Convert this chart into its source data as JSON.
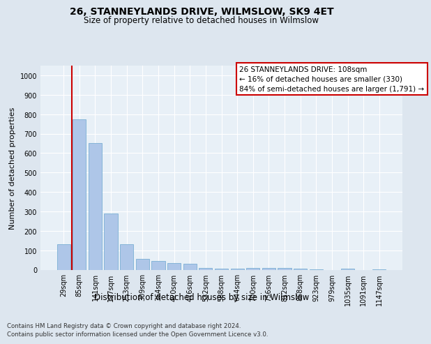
{
  "title1": "26, STANNEYLANDS DRIVE, WILMSLOW, SK9 4ET",
  "title2": "Size of property relative to detached houses in Wilmslow",
  "xlabel": "Distribution of detached houses by size in Wilmslow",
  "ylabel": "Number of detached properties",
  "categories": [
    "29sqm",
    "85sqm",
    "141sqm",
    "197sqm",
    "253sqm",
    "309sqm",
    "364sqm",
    "420sqm",
    "476sqm",
    "532sqm",
    "588sqm",
    "644sqm",
    "700sqm",
    "756sqm",
    "812sqm",
    "868sqm",
    "923sqm",
    "979sqm",
    "1035sqm",
    "1091sqm",
    "1147sqm"
  ],
  "values": [
    130,
    775,
    650,
    290,
    130,
    55,
    45,
    35,
    30,
    10,
    5,
    5,
    10,
    8,
    8,
    5,
    2,
    0,
    5,
    0,
    2
  ],
  "bar_color": "#aec6e8",
  "bar_edge_color": "#7aafd4",
  "vline_color": "#cc0000",
  "vline_x": 0.5,
  "annotation_text": "26 STANNEYLANDS DRIVE: 108sqm\n← 16% of detached houses are smaller (330)\n84% of semi-detached houses are larger (1,791) →",
  "annotation_box_facecolor": "#ffffff",
  "annotation_box_edgecolor": "#cc0000",
  "ylim_max": 1050,
  "yticks": [
    0,
    100,
    200,
    300,
    400,
    500,
    600,
    700,
    800,
    900,
    1000
  ],
  "footer1": "Contains HM Land Registry data © Crown copyright and database right 2024.",
  "footer2": "Contains public sector information licensed under the Open Government Licence v3.0.",
  "bg_color": "#dde6ef",
  "plot_bg_color": "#e8f0f7",
  "grid_color": "#ffffff",
  "title1_fontsize": 10,
  "title2_fontsize": 8.5,
  "ylabel_fontsize": 8,
  "xlabel_fontsize": 8.5,
  "tick_fontsize": 7,
  "footer_fontsize": 6.2
}
